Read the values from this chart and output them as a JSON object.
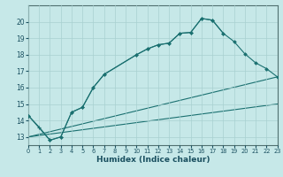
{
  "xlabel": "Humidex (Indice chaleur)",
  "bg_color": "#c6e8e8",
  "grid_color": "#a8d0d0",
  "line_color": "#1a7070",
  "xlim": [
    0,
    23
  ],
  "ylim": [
    12.5,
    21.0
  ],
  "yticks": [
    13,
    14,
    15,
    16,
    17,
    18,
    19,
    20
  ],
  "xticks": [
    0,
    1,
    2,
    3,
    4,
    5,
    6,
    7,
    8,
    9,
    10,
    11,
    12,
    13,
    14,
    15,
    16,
    17,
    18,
    19,
    20,
    21,
    22,
    23
  ],
  "line1_x": [
    0,
    1,
    2,
    3,
    4,
    5,
    6,
    7,
    10,
    11,
    12,
    13,
    14,
    15,
    16,
    17,
    18
  ],
  "line1_y": [
    14.3,
    13.6,
    12.8,
    13.0,
    14.5,
    14.8,
    16.0,
    16.8,
    18.0,
    18.35,
    18.6,
    18.7,
    19.3,
    19.35,
    20.2,
    20.1,
    19.3
  ],
  "line2_x": [
    0,
    2,
    3,
    4,
    5,
    6,
    7,
    10,
    11,
    12,
    13,
    14,
    15,
    16,
    17,
    18,
    19,
    20,
    21,
    22,
    23
  ],
  "line2_y": [
    14.3,
    12.8,
    13.0,
    14.5,
    14.8,
    16.0,
    16.8,
    18.0,
    18.35,
    18.6,
    18.7,
    19.3,
    19.35,
    20.2,
    20.1,
    19.3,
    18.8,
    18.05,
    17.5,
    17.15,
    16.65
  ],
  "line3_x": [
    0,
    23
  ],
  "line3_y": [
    13.0,
    16.65
  ],
  "line4_x": [
    0,
    23
  ],
  "line4_y": [
    13.0,
    15.0
  ]
}
